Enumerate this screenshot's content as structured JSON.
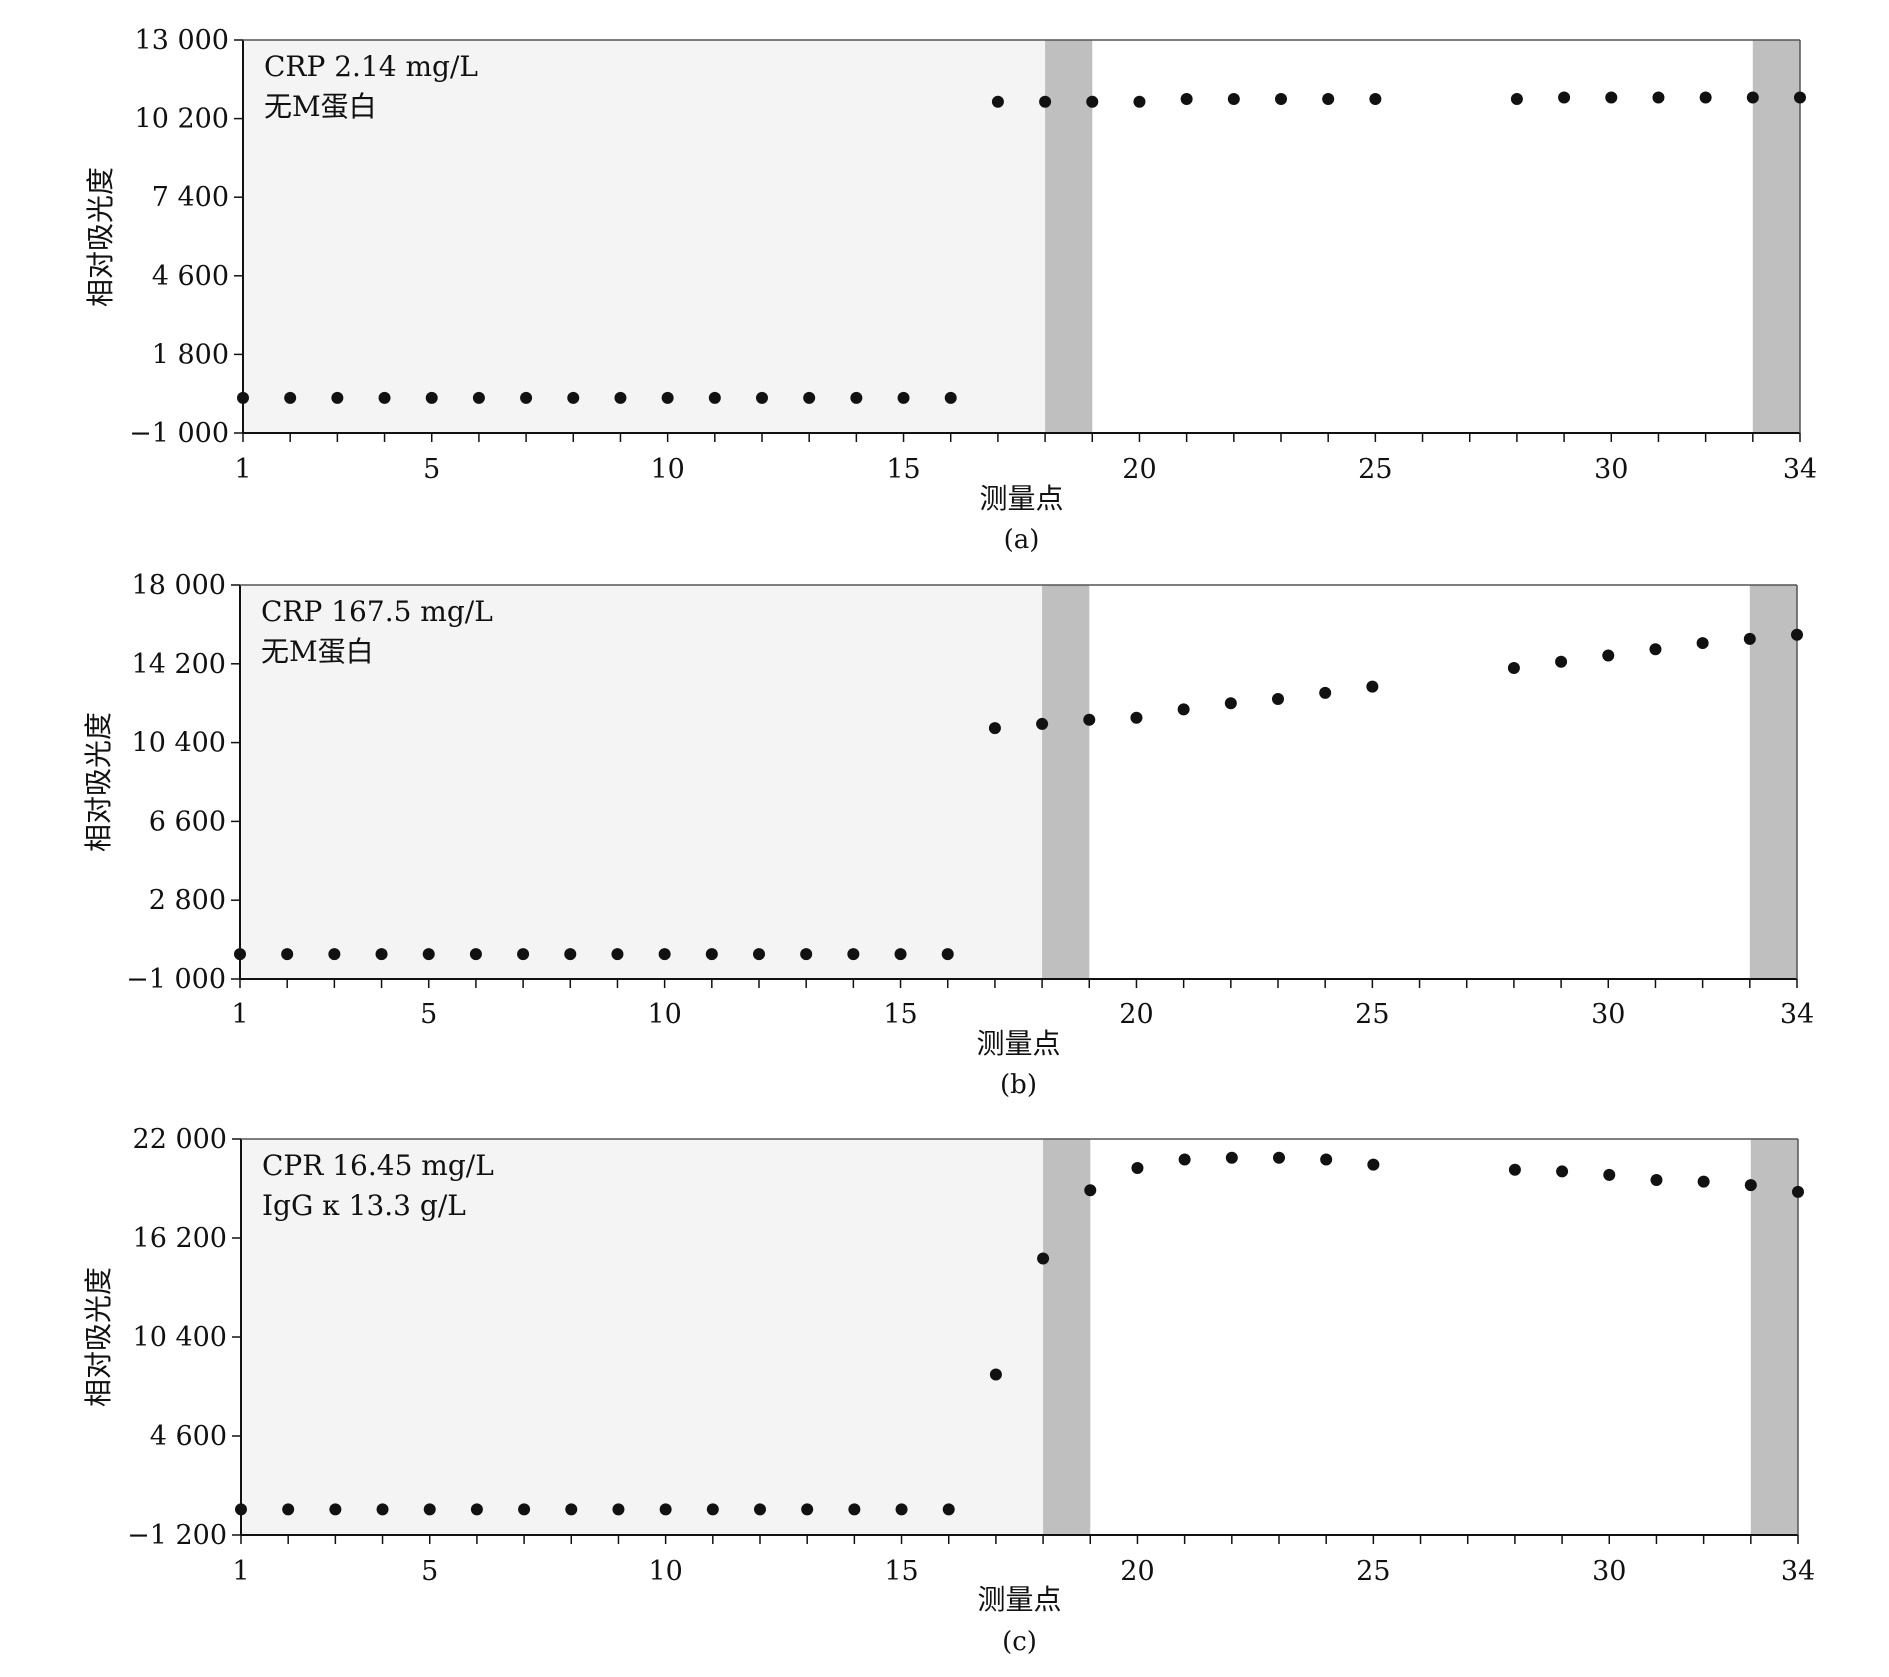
{
  "chart_data": [
    {
      "type": "scatter",
      "panel_label": "(a)",
      "xlabel": "测量点",
      "ylabel": "相对吸光度",
      "xlim": [
        1,
        34
      ],
      "ylim": [
        -1000,
        13000
      ],
      "x_tick_labels": [
        "1",
        "5",
        "10",
        "15",
        "20",
        "25",
        "30",
        "34"
      ],
      "x_tick_values": [
        1,
        5,
        10,
        15,
        20,
        25,
        30,
        34
      ],
      "y_tick_labels": [
        "−1 000",
        "1 800",
        "4 600",
        "7 400",
        "10 200",
        "13 000"
      ],
      "y_tick_values": [
        -1000,
        1800,
        4600,
        7400,
        10200,
        13000
      ],
      "annotations": [
        "CRP 2.14 mg/L",
        "无M蛋白"
      ],
      "shaded_ranges": [
        [
          18,
          19
        ],
        [
          33,
          34
        ]
      ],
      "grid": false,
      "points": {
        "x": [
          1,
          2,
          3,
          4,
          5,
          6,
          7,
          8,
          9,
          10,
          11,
          12,
          13,
          14,
          15,
          16,
          17,
          18,
          19,
          20,
          21,
          22,
          23,
          24,
          25,
          28,
          29,
          30,
          31,
          32,
          33,
          34
        ],
        "y": [
          250,
          250,
          250,
          250,
          250,
          250,
          250,
          250,
          250,
          250,
          250,
          250,
          250,
          250,
          250,
          250,
          10800,
          10800,
          10800,
          10800,
          10900,
          10900,
          10900,
          10900,
          10900,
          10900,
          10950,
          10950,
          10950,
          10950,
          10950,
          10950
        ]
      }
    },
    {
      "type": "scatter",
      "panel_label": "(b)",
      "xlabel": "测量点",
      "ylabel": "相对吸光度",
      "xlim": [
        1,
        34
      ],
      "ylim": [
        -1000,
        18000
      ],
      "x_tick_labels": [
        "1",
        "5",
        "10",
        "15",
        "20",
        "25",
        "30",
        "34"
      ],
      "x_tick_values": [
        1,
        5,
        10,
        15,
        20,
        25,
        30,
        34
      ],
      "y_tick_labels": [
        "−1 000",
        "2 800",
        "6 600",
        "10 400",
        "14 200",
        "18 000"
      ],
      "y_tick_values": [
        -1000,
        2800,
        6600,
        10400,
        14200,
        18000
      ],
      "annotations": [
        "CRP 167.5 mg/L",
        "无M蛋白"
      ],
      "shaded_ranges": [
        [
          18,
          19
        ],
        [
          33,
          34
        ]
      ],
      "grid": false,
      "points": {
        "x": [
          1,
          2,
          3,
          4,
          5,
          6,
          7,
          8,
          9,
          10,
          11,
          12,
          13,
          14,
          15,
          16,
          17,
          18,
          19,
          20,
          21,
          22,
          23,
          24,
          25,
          28,
          29,
          30,
          31,
          32,
          33,
          34
        ],
        "y": [
          200,
          200,
          200,
          200,
          200,
          200,
          200,
          200,
          200,
          200,
          200,
          200,
          200,
          200,
          200,
          200,
          11100,
          11300,
          11500,
          11600,
          12000,
          12300,
          12500,
          12800,
          13100,
          14000,
          14300,
          14600,
          14900,
          15200,
          15400,
          15600
        ]
      }
    },
    {
      "type": "scatter",
      "panel_label": "(c)",
      "xlabel": "测量点",
      "ylabel": "相对吸光度",
      "xlim": [
        1,
        34
      ],
      "ylim": [
        -1200,
        22000
      ],
      "x_tick_labels": [
        "1",
        "5",
        "10",
        "15",
        "20",
        "25",
        "30",
        "34"
      ],
      "x_tick_values": [
        1,
        5,
        10,
        15,
        20,
        25,
        30,
        34
      ],
      "y_tick_labels": [
        "−1 200",
        "4 600",
        "10 400",
        "16 200",
        "22 000"
      ],
      "y_tick_values": [
        -1200,
        4600,
        10400,
        16200,
        22000
      ],
      "annotations": [
        "CPR 16.45 mg/L",
        "IgG κ 13.3 g/L"
      ],
      "shaded_ranges": [
        [
          18,
          19
        ],
        [
          33,
          34
        ]
      ],
      "grid": false,
      "points": {
        "x": [
          1,
          2,
          3,
          4,
          5,
          6,
          7,
          8,
          9,
          10,
          11,
          12,
          13,
          14,
          15,
          16,
          17,
          18,
          19,
          20,
          21,
          22,
          23,
          24,
          25,
          28,
          29,
          30,
          31,
          32,
          33,
          34
        ],
        "y": [
          300,
          300,
          300,
          300,
          300,
          300,
          300,
          300,
          300,
          300,
          300,
          300,
          300,
          300,
          300,
          300,
          8200,
          15000,
          19000,
          20300,
          20800,
          20900,
          20900,
          20800,
          20500,
          20200,
          20100,
          19900,
          19600,
          19500,
          19300,
          18900
        ]
      }
    }
  ]
}
